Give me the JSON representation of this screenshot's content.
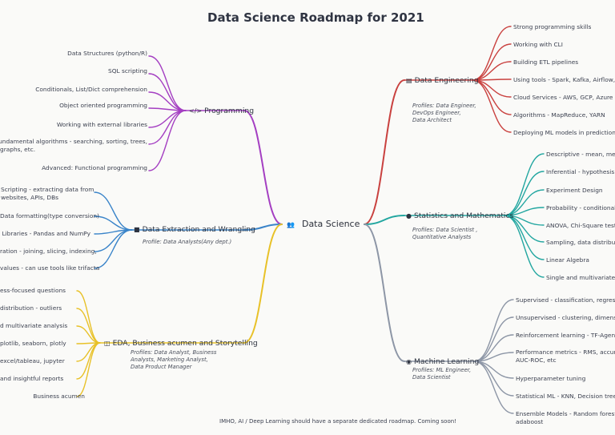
{
  "title": "Data Science Roadmap for 2021",
  "center": {
    "label": "Data Science",
    "icon": "people-icon"
  },
  "branches": {
    "programming": {
      "label": "Programming",
      "icon": "code-icon",
      "color": "#a43fc2",
      "leaves": [
        "Data Structures (python/R)",
        "SQL scripting",
        "Conditionals, List/Dict comprehension",
        "Object oriented programming",
        "Working with external libraries",
        "Fundamental algorithms - searching, sorting, trees,",
        "graphs, etc.",
        "Advanced: Functional programming"
      ]
    },
    "extraction": {
      "label": "Data Extraction and Wrangling",
      "icon": "briefcase-icon",
      "color": "#3a84c9",
      "profiles": "Profile: Data Analysts(Any dept.)",
      "leaves": [
        "Scripting - extracting data from",
        "websites, APIs, DBs",
        "Data formatting(type conversion)",
        "Libraries - Pandas and NumPy",
        "ration - joining, slicing, indexing,",
        "values - can use tools like trifacta"
      ]
    },
    "eda": {
      "label": "EDA, Business acumen and Storytelling",
      "icon": "chart-icon",
      "color": "#e8c128",
      "profiles": [
        "Profiles: Data Analyst, Business",
        "Analysts, Marketing Analyst,",
        "Data Product Manager"
      ],
      "leaves": [
        "ess-focused questions",
        "distribution - outliers",
        "d multivariate analysis",
        "plotlib, seaborn, plotly",
        "excel/tableau, jupyter",
        "and insightful reports",
        "Business acumen"
      ]
    },
    "engineering": {
      "label": "Data Engineering",
      "icon": "database-icon",
      "color": "#c9413f",
      "profiles": [
        "Profiles: Data Engineer,",
        "DevOps Engineer,",
        "Data Architect"
      ],
      "leaves": [
        "Strong programming skills",
        "Working with CLI",
        "Building ETL pipelines",
        "Using tools - Spark, Kafka, Airflow, e",
        "Cloud Services - AWS, GCP, Azure",
        "Algorithms - MapReduce, YARN",
        "Deploying ML models in prediction"
      ]
    },
    "statistics": {
      "label": "Statistics and Mathematics",
      "icon": "gauge-icon",
      "color": "#22a6a0",
      "profiles": [
        "Profiles: Data Scientist ,",
        "Quantitative Analysts"
      ],
      "leaves": [
        "Descriptive - mean, med",
        "Inferential - hypothesis &",
        "Experiment Design",
        "Probability - conditional,",
        "ANOVA, Chi-Square test",
        "Sampling, data distribu",
        "Linear Algebra",
        "Single and multivariate c"
      ]
    },
    "ml": {
      "label": "Machine Learning",
      "icon": "brain-icon",
      "color": "#8d96a6",
      "profiles": [
        "Profiles: ML Engineer,",
        "Data Scientist"
      ],
      "leaves": [
        "Supervised - classification, regress",
        "Unsupervised - clustering, dimensi",
        "Reinforcement learning - TF-Agents",
        "Performance metrics - RMS, accura",
        "AUC-ROC, etc",
        "Hyperparameter tuning",
        "Statistical ML - KNN, Decision trees",
        "Ensemble Models - Random forests",
        "adaboost"
      ]
    }
  },
  "footnote": "IMHO, AI / Deep Learning should have a separate dedicated roadmap. Coming soon!"
}
